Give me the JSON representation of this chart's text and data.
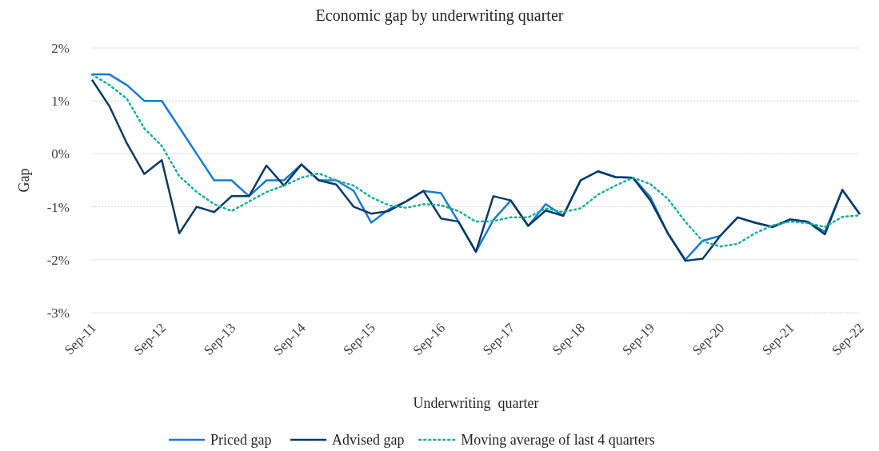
{
  "chart_data": {
    "type": "line",
    "title": "Economic gap by underwriting quarter",
    "xlabel": "Underwriting  quarter",
    "ylabel": "Gap",
    "categories": [
      "Sep-11",
      null,
      null,
      null,
      "Sep-12",
      null,
      null,
      null,
      "Sep-13",
      null,
      null,
      null,
      "Sep-14",
      null,
      null,
      null,
      "Sep-15",
      null,
      null,
      null,
      "Sep-16",
      null,
      null,
      null,
      "Sep-17",
      null,
      null,
      null,
      "Sep-18",
      null,
      null,
      null,
      "Sep-19",
      null,
      null,
      null,
      "Sep-20",
      null,
      null,
      null,
      "Sep-21",
      null,
      null,
      null,
      "Sep-22"
    ],
    "ylim": [
      -3,
      2
    ],
    "yticks": [
      {
        "value": -3,
        "label": "-3%"
      },
      {
        "value": -2,
        "label": "-2%"
      },
      {
        "value": -1,
        "label": "-1%"
      },
      {
        "value": 0,
        "label": "0%"
      },
      {
        "value": 1,
        "label": "1%"
      },
      {
        "value": 2,
        "label": "2%"
      }
    ],
    "grid": "y",
    "legend": "bottom",
    "series": [
      {
        "name": "Priced gap",
        "color": "#1a7ad0",
        "line_style": "solid",
        "values": [
          1.5,
          1.5,
          1.3,
          1.0,
          1.0,
          0.5,
          0.0,
          -0.5,
          -0.5,
          -0.8,
          -0.5,
          -0.5,
          -0.2,
          -0.5,
          -0.5,
          -0.7,
          -1.3,
          -1.05,
          -0.9,
          -0.7,
          -0.74,
          -1.28,
          -1.85,
          -1.25,
          -0.88,
          -1.36,
          -0.95,
          -1.17,
          -0.5,
          -0.33,
          -0.44,
          -0.45,
          -0.82,
          -1.5,
          -2.0,
          -1.64,
          -1.55,
          -1.2,
          -1.3,
          -1.38,
          -1.24,
          -1.28,
          -1.47,
          -0.68,
          -1.14
        ]
      },
      {
        "name": "Advised gap",
        "color": "#0b3a66",
        "line_style": "solid",
        "values": [
          1.4,
          0.9,
          0.2,
          -0.38,
          -0.12,
          -1.5,
          -1.0,
          -1.1,
          -0.8,
          -0.8,
          -0.22,
          -0.6,
          -0.2,
          -0.5,
          -0.58,
          -1.0,
          -1.13,
          -1.08,
          -0.9,
          -0.7,
          -1.22,
          -1.28,
          -1.85,
          -0.8,
          -0.88,
          -1.36,
          -1.07,
          -1.17,
          -0.5,
          -0.33,
          -0.44,
          -0.45,
          -0.88,
          -1.5,
          -2.02,
          -1.98,
          -1.55,
          -1.2,
          -1.3,
          -1.38,
          -1.24,
          -1.28,
          -1.52,
          -0.68,
          -1.14
        ]
      },
      {
        "name": "Moving average of last 4 quarters",
        "color": "#16b09a",
        "line_style": "dotted",
        "values": [
          1.5,
          1.3,
          1.04,
          0.48,
          0.15,
          -0.42,
          -0.72,
          -0.95,
          -1.08,
          -0.9,
          -0.72,
          -0.6,
          -0.45,
          -0.37,
          -0.5,
          -0.6,
          -0.82,
          -0.97,
          -1.02,
          -0.95,
          -0.97,
          -1.08,
          -1.28,
          -1.27,
          -1.2,
          -1.2,
          -1.03,
          -1.1,
          -1.03,
          -0.77,
          -0.6,
          -0.45,
          -0.57,
          -0.85,
          -1.28,
          -1.65,
          -1.75,
          -1.7,
          -1.5,
          -1.35,
          -1.28,
          -1.31,
          -1.38,
          -1.19,
          -1.16
        ]
      }
    ]
  }
}
